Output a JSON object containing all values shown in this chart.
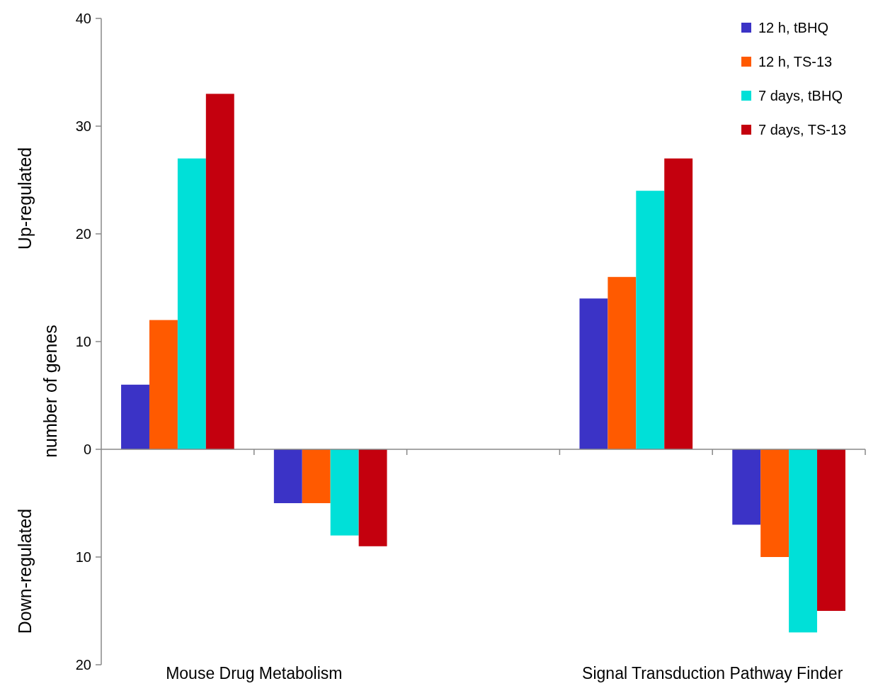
{
  "chart_data": {
    "type": "bar",
    "ylabel": "number of genes",
    "categories": [
      null,
      null,
      null,
      null,
      null
    ],
    "series": [
      {
        "name": "12 h, tBHQ",
        "color": "#3b33c6",
        "values": [
          6,
          -5,
          null,
          14,
          -7
        ]
      },
      {
        "name": "12 h, TS-13",
        "color": "#ff5a00",
        "values": [
          12,
          -5,
          null,
          16,
          -10
        ]
      },
      {
        "name": "7 days, tBHQ",
        "color": "#00e0d8",
        "values": [
          27,
          -8,
          null,
          24,
          -17
        ]
      },
      {
        "name": "7 days, TS-13",
        "color": "#c4000e",
        "values": [
          33,
          -9,
          null,
          27,
          -15
        ]
      }
    ],
    "ylim": [
      -20,
      40
    ],
    "yticks": [
      {
        "value": -20,
        "label": "20"
      },
      {
        "value": -10,
        "label": "10"
      },
      0,
      10,
      20,
      30,
      40
    ],
    "annotations": [
      "Up-regulated",
      "Down-regulated",
      "Mouse Drug Metabolism",
      "Signal Transduction Pathway Finder"
    ],
    "legend": "top right"
  }
}
